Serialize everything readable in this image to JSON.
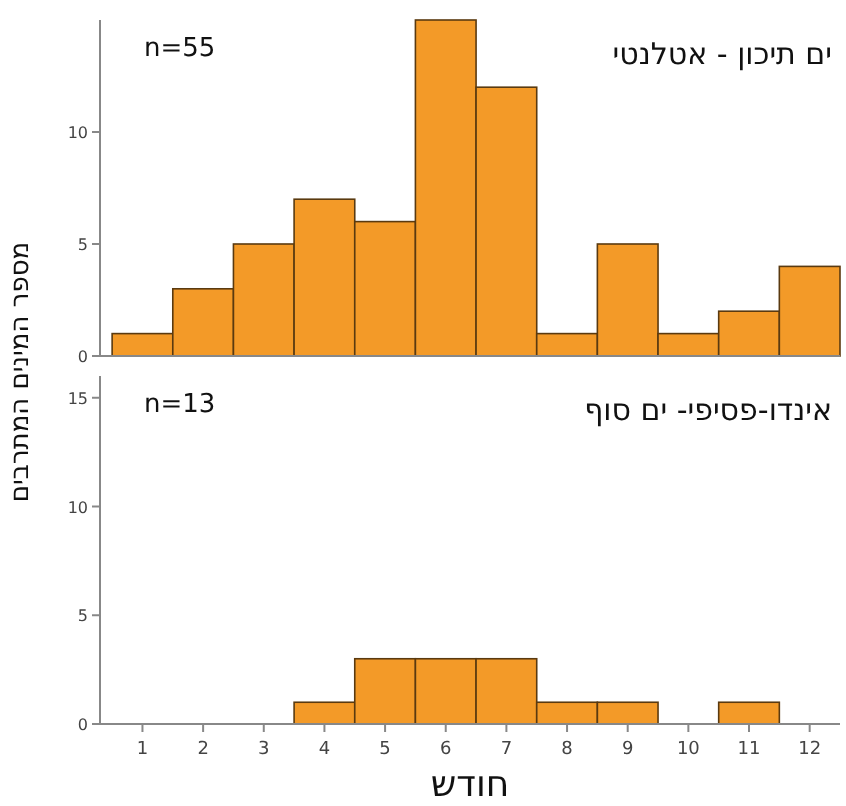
{
  "chart_data": [
    {
      "type": "histogram",
      "title": "ים תיכון - אטלנטי",
      "ylabel": "מספר המינים המתרבים",
      "annotations": [
        "n=55"
      ],
      "bins": [
        0.5,
        1.5,
        2.5,
        3.5,
        4.5,
        5.5,
        6.5,
        7.5,
        8.5,
        9.5,
        10.5,
        11.5,
        12.5
      ],
      "values": [
        1,
        3,
        5,
        7,
        6,
        15,
        12,
        1,
        5,
        1,
        2,
        4
      ],
      "color": "#f39a28",
      "xlim": [
        0.3,
        12.5
      ],
      "xticks": [
        1,
        2,
        3,
        4,
        5,
        6,
        7,
        8,
        9,
        10,
        11,
        12
      ],
      "ylim": [
        0,
        15
      ],
      "yticks": [
        0,
        5,
        10
      ],
      "tick_labels": "y"
    },
    {
      "type": "histogram",
      "title": "אינדו-פסיפי- ים סוף",
      "xlabel": "חודש",
      "annotations": [
        "n=13"
      ],
      "bins": [
        0.5,
        1.5,
        2.5,
        3.5,
        4.5,
        5.5,
        6.5,
        7.5,
        8.5,
        9.5,
        10.5,
        11.5,
        12.5
      ],
      "values": [
        0,
        0,
        0,
        1,
        3,
        3,
        3,
        1,
        1,
        0,
        1,
        0
      ],
      "color": "#f39a28",
      "xlim": [
        0.3,
        12.5
      ],
      "xticks": [
        1,
        2,
        3,
        4,
        5,
        6,
        7,
        8,
        9,
        10,
        11,
        12
      ],
      "ylim": [
        0,
        16
      ],
      "yticks": [
        0,
        5,
        10,
        15
      ]
    }
  ]
}
